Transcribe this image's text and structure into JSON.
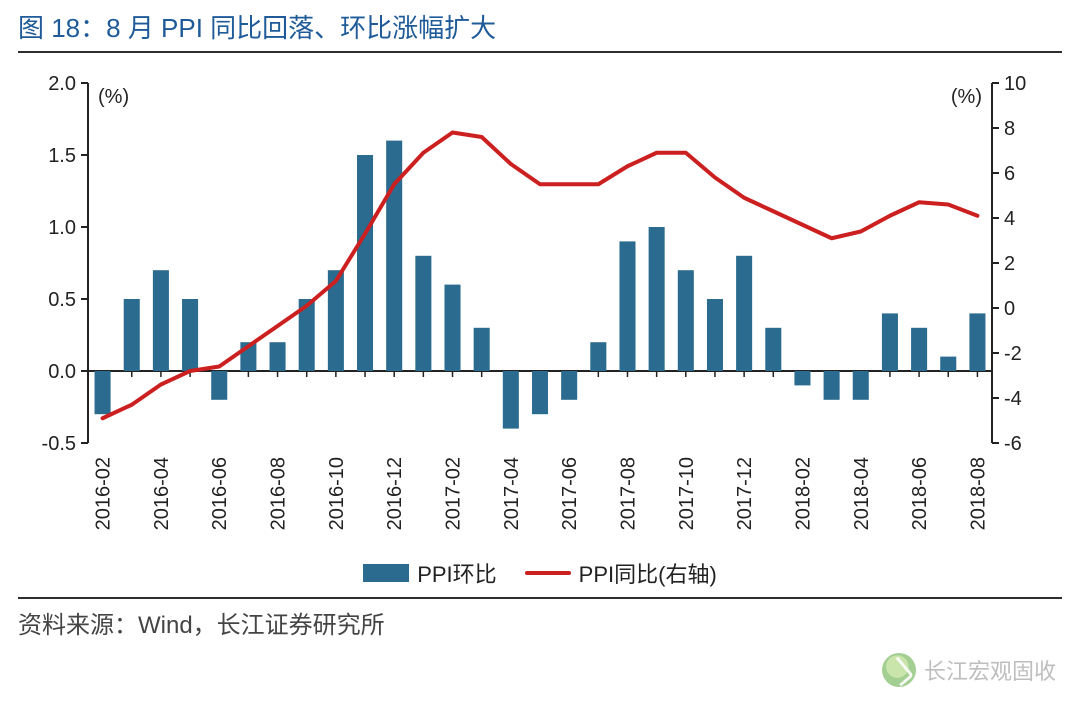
{
  "title": "图 18：8 月 PPI 同比回落、环比涨幅扩大",
  "source": "资料来源：Wind，长江证券研究所",
  "watermark": "长江宏观固收",
  "chart": {
    "type": "bar+line-dual-axis",
    "background_color": "#ffffff",
    "plot_border_color": "#222222",
    "hr_color": "#2e2e2e",
    "left_axis": {
      "unit_label": "(%)",
      "min": -0.5,
      "max": 2.0,
      "step": 0.5,
      "ticks": [
        "-0.5",
        "0.0",
        "0.5",
        "1.0",
        "1.5",
        "2.0"
      ]
    },
    "right_axis": {
      "unit_label": "(%)",
      "min": -6,
      "max": 10,
      "step": 2,
      "ticks": [
        "-6",
        "-4",
        "-2",
        "0",
        "2",
        "4",
        "6",
        "8",
        "10"
      ]
    },
    "categories": [
      "2016-02",
      "2016-03",
      "2016-04",
      "2016-05",
      "2016-06",
      "2016-07",
      "2016-08",
      "2016-09",
      "2016-10",
      "2016-11",
      "2016-12",
      "2017-01",
      "2017-02",
      "2017-03",
      "2017-04",
      "2017-05",
      "2017-06",
      "2017-07",
      "2017-08",
      "2017-09",
      "2017-10",
      "2017-11",
      "2017-12",
      "2018-01",
      "2018-02",
      "2018-03",
      "2018-04",
      "2018-05",
      "2018-06",
      "2018-07",
      "2018-08"
    ],
    "x_tick_every": 2,
    "bars": {
      "name": "PPI环比",
      "color": "#2a6b8f",
      "width_ratio": 0.55,
      "values": [
        -0.3,
        0.5,
        0.7,
        0.5,
        -0.2,
        0.2,
        0.2,
        0.5,
        0.7,
        1.5,
        1.6,
        0.8,
        0.6,
        0.3,
        -0.4,
        -0.3,
        -0.2,
        0.2,
        0.9,
        1.0,
        0.7,
        0.5,
        0.8,
        0.3,
        -0.1,
        -0.2,
        -0.2,
        0.4,
        0.3,
        0.1,
        0.4
      ]
    },
    "line": {
      "name": "PPI同比(右轴)",
      "color": "#cc1f1f",
      "width": 4,
      "values": [
        -4.9,
        -4.3,
        -3.4,
        -2.8,
        -2.6,
        -1.7,
        -0.8,
        0.1,
        1.2,
        3.3,
        5.5,
        6.9,
        7.8,
        7.6,
        6.4,
        5.5,
        5.5,
        5.5,
        6.3,
        6.9,
        6.9,
        5.8,
        4.9,
        4.3,
        3.7,
        3.1,
        3.4,
        4.1,
        4.7,
        4.6,
        4.1
      ]
    },
    "legend": {
      "items": [
        {
          "kind": "bar",
          "label": "PPI环比",
          "color": "#2a6b8f"
        },
        {
          "kind": "line",
          "label": "PPI同比(右轴)",
          "color": "#cc1f1f"
        }
      ]
    },
    "fonts": {
      "title_size": 26,
      "axis_size": 20,
      "xlabel_size": 20,
      "legend_size": 22,
      "source_size": 24
    }
  }
}
